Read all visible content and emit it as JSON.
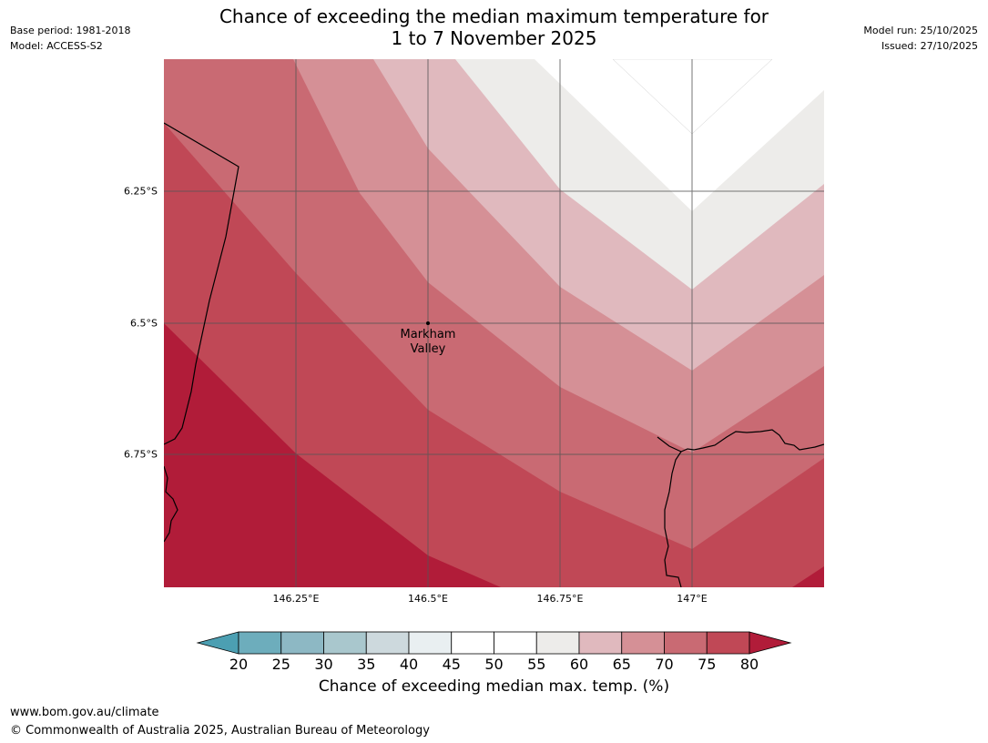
{
  "header": {
    "title_line1": "Chance of exceeding the median maximum temperature for",
    "title_line2": "1 to 7 November 2025",
    "base_period": "Base period: 1981-2018",
    "model": "Model: ACCESS-S2",
    "model_run": "Model run: 25/10/2025",
    "issued": "Issued: 27/10/2025"
  },
  "map": {
    "latitude_labels": [
      "6.25°S",
      "6.5°S",
      "6.75°S"
    ],
    "longitude_labels": [
      "146.25°E",
      "146.5°E",
      "146.75°E",
      "147°E"
    ],
    "place_marker": {
      "name_line1": "Markham",
      "name_line2": "Valley",
      "lat": -6.5,
      "lon": 146.5
    }
  },
  "colorbar": {
    "ticks": [
      "20",
      "25",
      "30",
      "35",
      "40",
      "45",
      "50",
      "55",
      "60",
      "65",
      "70",
      "75",
      "80"
    ],
    "colors": [
      "#4c9fb2",
      "#6dadbc",
      "#8db8c4",
      "#a9c7cd",
      "#cdd9dd",
      "#e9eff1",
      "#ffffff",
      "#ffffff",
      "#edecea",
      "#e0b9be",
      "#d59096",
      "#c96a73",
      "#c04856",
      "#b11c39"
    ],
    "label": "Chance of exceeding median max. temp. (%)"
  },
  "footer": {
    "url": "www.bom.gov.au/climate",
    "copyright": "© Commonwealth of Australia 2025, Australian Bureau of Meteorology"
  }
}
